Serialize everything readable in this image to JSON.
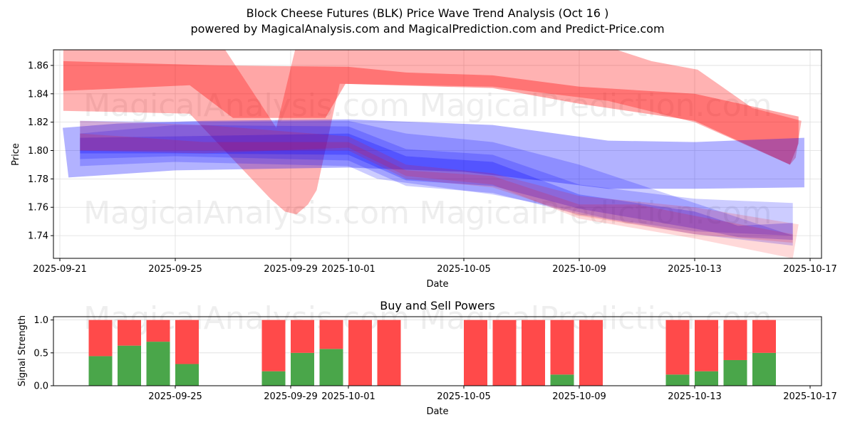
{
  "header": {
    "title": "Block Cheese Futures (BLK) Price Wave Trend Analysis (Oct 16 )",
    "subtitle": "powered by MagicalAnalysis.com and MagicalPrediction.com and Predict-Price.com"
  },
  "watermarks": [
    "MagicalAnalysis.com",
    "MagicalPrediction.com"
  ],
  "colors": {
    "red_band": "#ff0000",
    "blue_band": "#0000ff",
    "buy": "#4aa64a",
    "sell": "#ff4a4a",
    "grid": "#dddddd"
  },
  "chart_data": [
    {
      "type": "area",
      "title": "",
      "xlabel": "Date",
      "ylabel": "Price",
      "x_start_date": "2025-09-21",
      "xlim_days": [
        -0.15,
        26.4
      ],
      "ylim": [
        1.724,
        1.871
      ],
      "grid": true,
      "x_ticks": [
        {
          "day": 0,
          "label": "2025-09-21"
        },
        {
          "day": 4,
          "label": "2025-09-25"
        },
        {
          "day": 8,
          "label": "2025-09-29"
        },
        {
          "day": 10,
          "label": "2025-10-01"
        },
        {
          "day": 14,
          "label": "2025-10-05"
        },
        {
          "day": 18,
          "label": "2025-10-09"
        },
        {
          "day": 22,
          "label": "2025-10-13"
        },
        {
          "day": 26,
          "label": "2025-10-17"
        }
      ],
      "y_ticks": [
        1.74,
        1.76,
        1.78,
        1.8,
        1.82,
        1.84,
        1.86
      ],
      "bands": [
        {
          "name": "red-wide",
          "color": "red",
          "opacity": 0.3,
          "upper": [
            [
              0.12,
              1.875
            ],
            [
              5.6,
              1.875
            ],
            [
              7.5,
              1.816
            ],
            [
              8.2,
              1.875
            ],
            [
              19,
              1.873
            ],
            [
              20.5,
              1.863
            ],
            [
              22.1,
              1.857
            ],
            [
              24,
              1.83
            ],
            [
              25.7,
              1.821
            ]
          ],
          "lower": [
            [
              0.12,
              1.828
            ],
            [
              4.5,
              1.826
            ],
            [
              7.3,
              1.766
            ],
            [
              7.8,
              1.757
            ],
            [
              8.2,
              1.755
            ],
            [
              8.6,
              1.762
            ],
            [
              8.9,
              1.772
            ],
            [
              9.7,
              1.847
            ],
            [
              15,
              1.845
            ],
            [
              19,
              1.835
            ],
            [
              22,
              1.82
            ],
            [
              25.3,
              1.79
            ],
            [
              25.5,
              1.795
            ]
          ]
        },
        {
          "name": "red-core",
          "color": "red",
          "opacity": 0.35,
          "upper": [
            [
              0.12,
              1.863
            ],
            [
              5.5,
              1.86
            ],
            [
              10,
              1.859
            ],
            [
              12,
              1.855
            ],
            [
              15,
              1.853
            ],
            [
              18,
              1.845
            ],
            [
              22,
              1.84
            ],
            [
              25.6,
              1.824
            ]
          ],
          "lower": [
            [
              0.12,
              1.842
            ],
            [
              4.5,
              1.846
            ],
            [
              6,
              1.823
            ],
            [
              9.2,
              1.823
            ],
            [
              9.9,
              1.847
            ],
            [
              15,
              1.844
            ],
            [
              18,
              1.833
            ],
            [
              22,
              1.821
            ],
            [
              25.3,
              1.79
            ],
            [
              25.6,
              1.805
            ]
          ]
        },
        {
          "name": "blue-wide",
          "color": "blue",
          "opacity": 0.3,
          "upper": [
            [
              0.1,
              1.816
            ],
            [
              2,
              1.819
            ],
            [
              5,
              1.821
            ],
            [
              10,
              1.822
            ],
            [
              15,
              1.818
            ],
            [
              19,
              1.807
            ],
            [
              22,
              1.806
            ],
            [
              25.8,
              1.809
            ]
          ],
          "lower": [
            [
              0.3,
              1.781
            ],
            [
              4,
              1.786
            ],
            [
              10,
              1.788
            ],
            [
              14,
              1.785
            ],
            [
              17,
              1.778
            ],
            [
              19,
              1.773
            ],
            [
              22,
              1.773
            ],
            [
              25.8,
              1.774
            ]
          ]
        },
        {
          "name": "blue-mid-1",
          "color": "blue",
          "opacity": 0.2,
          "upper": [
            [
              0.7,
              1.821
            ],
            [
              4,
              1.82
            ],
            [
              10,
              1.821
            ],
            [
              12,
              1.812
            ],
            [
              15,
              1.806
            ],
            [
              18,
              1.79
            ]
          ],
          "lower": [
            [
              0.7,
              1.789
            ],
            [
              4,
              1.792
            ],
            [
              10,
              1.789
            ],
            [
              11,
              1.78
            ],
            [
              15,
              1.769
            ],
            [
              17,
              1.761
            ],
            [
              19,
              1.752
            ],
            [
              22,
              1.743
            ],
            [
              25.4,
              1.74
            ]
          ]
        },
        {
          "name": "blue-mid-2",
          "color": "blue",
          "opacity": 0.2,
          "upper": [
            [
              0.7,
              1.812
            ],
            [
              4,
              1.818
            ],
            [
              10,
              1.817
            ],
            [
              12,
              1.801
            ],
            [
              15,
              1.797
            ],
            [
              18,
              1.776
            ],
            [
              22,
              1.766
            ],
            [
              25.4,
              1.763
            ]
          ],
          "lower": [
            [
              0.7,
              1.794
            ],
            [
              4,
              1.796
            ],
            [
              10,
              1.793
            ],
            [
              12,
              1.775
            ],
            [
              15,
              1.77
            ],
            [
              18,
              1.755
            ],
            [
              22,
              1.741
            ],
            [
              25.4,
              1.733
            ]
          ]
        },
        {
          "name": "blue-core",
          "color": "blue",
          "opacity": 0.25,
          "upper": [
            [
              0.7,
              1.809
            ],
            [
              4,
              1.81
            ],
            [
              10,
              1.812
            ],
            [
              12,
              1.796
            ],
            [
              15,
              1.792
            ],
            [
              18,
              1.769
            ],
            [
              22,
              1.757
            ],
            [
              23.5,
              1.747
            ],
            [
              25.4,
              1.749
            ]
          ],
          "lower": [
            [
              0.7,
              1.798
            ],
            [
              4,
              1.798
            ],
            [
              10,
              1.797
            ],
            [
              12,
              1.779
            ],
            [
              15,
              1.775
            ],
            [
              18,
              1.759
            ],
            [
              22,
              1.745
            ],
            [
              23.5,
              1.739
            ],
            [
              25.4,
              1.737
            ]
          ]
        },
        {
          "name": "purple-1",
          "color": "red",
          "opacity": 0.15,
          "upper": [
            [
              0.7,
              1.821
            ],
            [
              5,
              1.818
            ],
            [
              10,
              1.81
            ],
            [
              12,
              1.79
            ],
            [
              15,
              1.784
            ],
            [
              18,
              1.768
            ],
            [
              22,
              1.76
            ],
            [
              25.6,
              1.748
            ]
          ],
          "lower": [
            [
              0.7,
              1.8
            ],
            [
              5,
              1.798
            ],
            [
              10,
              1.802
            ],
            [
              12,
              1.782
            ],
            [
              15,
              1.776
            ],
            [
              18,
              1.752
            ],
            [
              22,
              1.738
            ],
            [
              25.4,
              1.724
            ]
          ]
        },
        {
          "name": "purple-2",
          "color": "red",
          "opacity": 0.15,
          "upper": [
            [
              0.7,
              1.812
            ],
            [
              5,
              1.806
            ],
            [
              10,
              1.806
            ],
            [
              12,
              1.786
            ],
            [
              15,
              1.782
            ],
            [
              18,
              1.762
            ],
            [
              20,
              1.762
            ],
            [
              22,
              1.754
            ],
            [
              25.4,
              1.741
            ]
          ],
          "lower": [
            [
              0.7,
              1.8
            ],
            [
              5,
              1.8
            ],
            [
              10,
              1.8
            ],
            [
              12,
              1.78
            ],
            [
              15,
              1.774
            ],
            [
              18,
              1.754
            ],
            [
              22,
              1.741
            ],
            [
              25.4,
              1.735
            ]
          ]
        }
      ],
      "watermark_rows": 2
    },
    {
      "type": "bar",
      "title": "Buy and Sell Powers",
      "xlabel": "Date",
      "ylabel": "Signal Strength",
      "ylim": [
        0,
        1.05
      ],
      "y_ticks": [
        0.0,
        0.5,
        1.0
      ],
      "x_ticks": [
        {
          "day": 4,
          "label": "2025-09-25"
        },
        {
          "day": 8,
          "label": "2025-09-29"
        },
        {
          "day": 10,
          "label": "2025-10-01"
        },
        {
          "day": 14,
          "label": "2025-10-05"
        },
        {
          "day": 18,
          "label": "2025-10-09"
        },
        {
          "day": 22,
          "label": "2025-10-13"
        },
        {
          "day": 26,
          "label": "2025-10-17"
        }
      ],
      "categories": [
        "2025-09-23",
        "2025-09-24",
        "2025-09-25",
        "2025-09-26",
        "2025-09-29",
        "2025-09-30",
        "2025-10-01",
        "2025-10-02",
        "2025-10-03",
        "2025-10-06",
        "2025-10-07",
        "2025-10-08",
        "2025-10-09",
        "2025-10-10",
        "2025-10-13",
        "2025-10-14",
        "2025-10-15",
        "2025-10-16"
      ],
      "day_index": [
        2,
        3,
        4,
        5,
        8,
        9,
        10,
        11,
        12,
        15,
        16,
        17,
        18,
        19,
        22,
        23,
        24,
        25
      ],
      "series": [
        {
          "name": "Buy",
          "values": [
            0.45,
            0.61,
            0.67,
            0.33,
            0.22,
            0.5,
            0.56,
            0,
            0,
            0,
            0,
            0,
            0.17,
            0,
            0.17,
            0.22,
            0.39,
            0.5
          ]
        },
        {
          "name": "Sell",
          "values": [
            0.55,
            0.39,
            0.33,
            0.67,
            0.78,
            0.5,
            0.44,
            1,
            1,
            1,
            1,
            1,
            0.83,
            1,
            0.83,
            0.78,
            0.61,
            0.5
          ]
        }
      ]
    }
  ]
}
